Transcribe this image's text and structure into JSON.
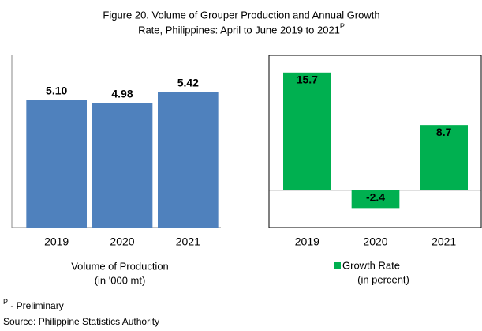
{
  "title": "Figure 20. Volume of Grouper Production and  Annual Growth Rate, Philippines: April to June 2019 to 2021",
  "title_superscript": "P",
  "chart_data": [
    {
      "type": "bar",
      "categories": [
        "2019",
        "2020",
        "2021"
      ],
      "values": [
        5.1,
        4.98,
        5.42
      ],
      "value_labels": [
        "5.10",
        "4.98",
        "5.42"
      ],
      "color": "#4f81bd",
      "ylim": [
        0,
        6.9
      ],
      "xlabel": [
        "Volume of Production",
        "(in '000 mt)"
      ]
    },
    {
      "type": "bar",
      "categories": [
        "2019",
        "2020",
        "2021"
      ],
      "series": [
        {
          "name": "Growth Rate",
          "color": "#00b050",
          "values": [
            15.7,
            -2.4,
            8.7
          ]
        }
      ],
      "legend_subtitle": "(in percent)",
      "ylim": [
        -5,
        18
      ]
    }
  ],
  "footnote": {
    "marker": "P",
    "text": " - Preliminary"
  },
  "source": "Source: Philippine Statistics Authority"
}
